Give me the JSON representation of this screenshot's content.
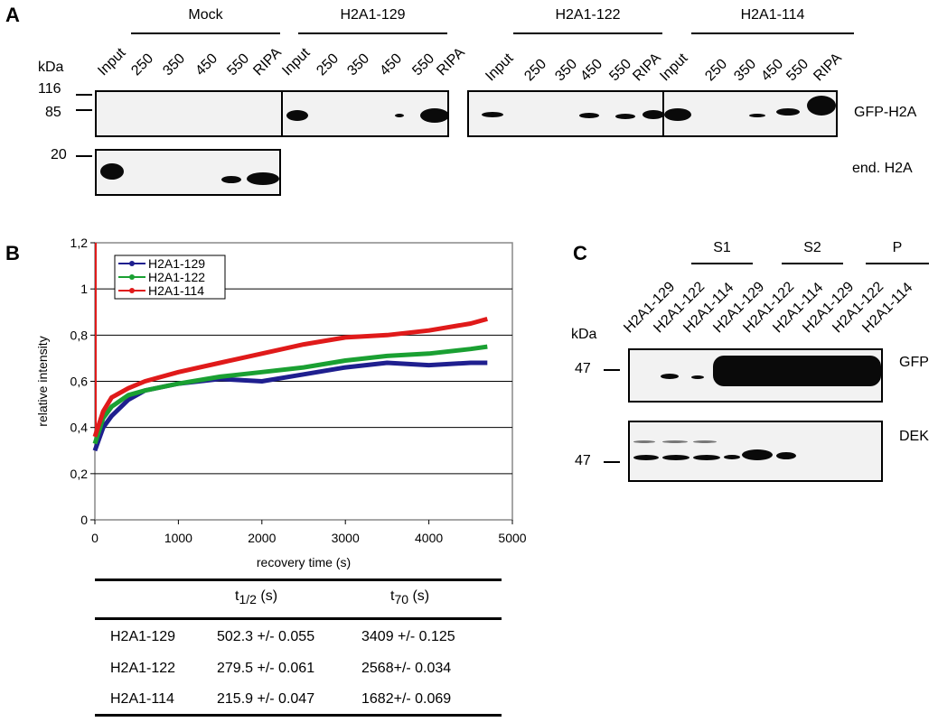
{
  "panelA": {
    "letter": "A",
    "kda": "kDa",
    "groups": [
      "Mock",
      "H2A1-129",
      "H2A1-122",
      "H2A1-114"
    ],
    "lanes": [
      "Input",
      "250",
      "350",
      "450",
      "550",
      "RIPA"
    ],
    "markers": [
      "116",
      "85",
      "20"
    ],
    "blot1_label": "GFP-H2A",
    "blot2_label": "end. H2A"
  },
  "panelB": {
    "letter": "B",
    "table": {
      "headers": [
        "",
        "t1/2 (s)",
        "t70 (s)"
      ],
      "h1_main": "t",
      "h1_sub": "1/2",
      "h1_unit": " (s)",
      "h2_main": "t",
      "h2_sub": "70",
      "h2_unit": " (s)",
      "rows": [
        [
          "H2A1-129",
          "502.3 +/- 0.055",
          "3409 +/- 0.125"
        ],
        [
          "H2A1-122",
          "279.5 +/- 0.061",
          "2568+/- 0.034"
        ],
        [
          "H2A1-114",
          "215.9 +/- 0.047",
          "1682+/- 0.069"
        ]
      ]
    }
  },
  "panelC": {
    "letter": "C",
    "kda": "kDa",
    "groups": [
      "S1",
      "S2",
      "P"
    ],
    "lanes": [
      "H2A1-129",
      "H2A1-122",
      "H2A1-114",
      "H2A1-129",
      "H2A1-122",
      "H2A1-114",
      "H2A1-129",
      "H2A1-122",
      "H2A1-114"
    ],
    "marker1": "47",
    "marker2": "47",
    "blot1_label": "GFP",
    "blot2_label": "DEK"
  },
  "chart_data": {
    "type": "line",
    "title": "",
    "xlabel": "recovery time (s)",
    "ylabel": "relative intensity",
    "xlim": [
      0,
      5000
    ],
    "ylim": [
      0,
      1.2
    ],
    "xticks": [
      "0",
      "1000",
      "2000",
      "3000",
      "4000",
      "5000"
    ],
    "yticks": [
      "0",
      "0,2",
      "0,4",
      "0,6",
      "0,8",
      "1",
      "1,2"
    ],
    "grid": true,
    "legend_position": "top-left",
    "series": [
      {
        "name": "H2A1-129",
        "color": "#1f1f8f",
        "x": [
          0,
          100,
          200,
          400,
          600,
          1000,
          1500,
          2000,
          2500,
          3000,
          3500,
          4000,
          4500,
          4700
        ],
        "y": [
          0.3,
          0.4,
          0.45,
          0.52,
          0.56,
          0.59,
          0.61,
          0.6,
          0.63,
          0.66,
          0.68,
          0.67,
          0.68,
          0.68
        ]
      },
      {
        "name": "H2A1-122",
        "color": "#1aa032",
        "x": [
          0,
          100,
          200,
          400,
          600,
          1000,
          1500,
          2000,
          2500,
          3000,
          3500,
          4000,
          4500,
          4700
        ],
        "y": [
          0.33,
          0.44,
          0.49,
          0.54,
          0.56,
          0.59,
          0.62,
          0.64,
          0.66,
          0.69,
          0.71,
          0.72,
          0.74,
          0.75
        ]
      },
      {
        "name": "H2A1-114",
        "color": "#e01a1a",
        "x": [
          0,
          100,
          200,
          400,
          600,
          1000,
          1500,
          2000,
          2500,
          3000,
          3500,
          4000,
          4500,
          4700
        ],
        "y": [
          0.36,
          0.47,
          0.53,
          0.57,
          0.6,
          0.64,
          0.68,
          0.72,
          0.76,
          0.79,
          0.8,
          0.82,
          0.85,
          0.87
        ]
      }
    ]
  }
}
